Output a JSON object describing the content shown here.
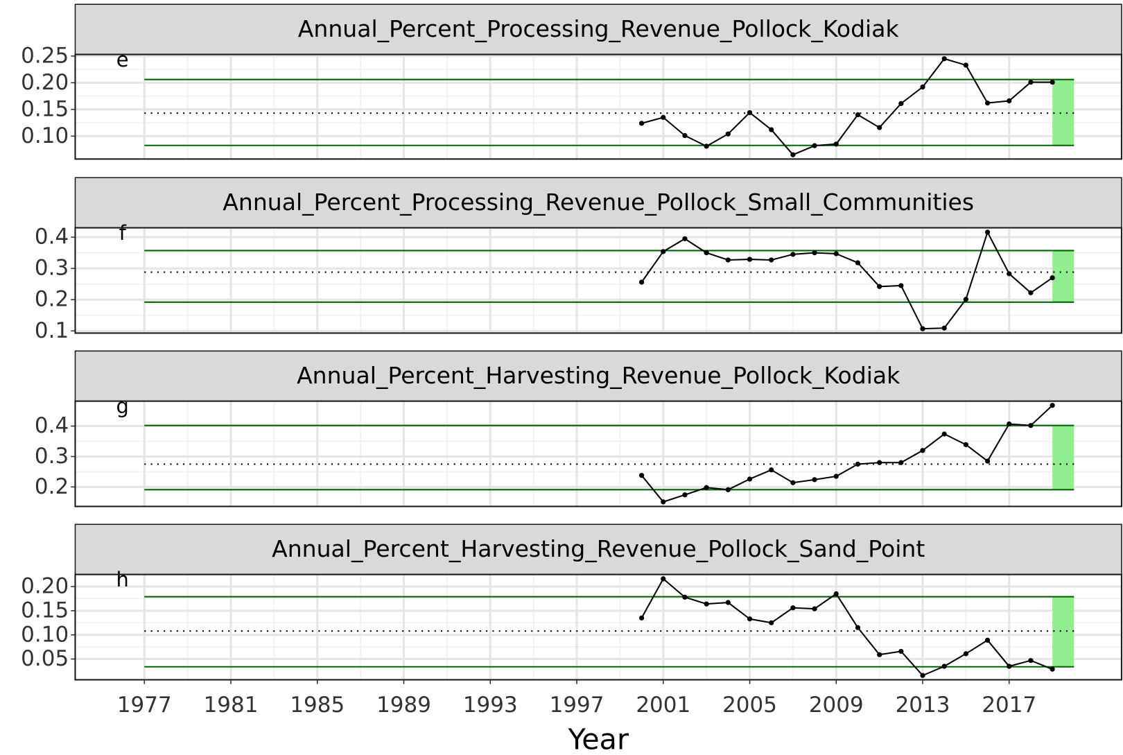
{
  "chart_data": [
    {
      "type": "line",
      "title": "Annual_Percent_Processing_Revenue_Pollock_Kodiak",
      "annotation": "e",
      "x": [
        2000,
        2001,
        2002,
        2003,
        2004,
        2005,
        2006,
        2007,
        2008,
        2009,
        2010,
        2011,
        2012,
        2013,
        2014,
        2015,
        2016,
        2017,
        2018,
        2019
      ],
      "values": [
        0.124,
        0.135,
        0.101,
        0.081,
        0.104,
        0.144,
        0.112,
        0.065,
        0.082,
        0.085,
        0.14,
        0.116,
        0.161,
        0.192,
        0.245,
        0.233,
        0.162,
        0.166,
        0.201,
        0.201
      ],
      "mean": 0.143,
      "upper": 0.206,
      "lower": 0.0825,
      "line_x": [
        1977,
        2020
      ],
      "shade_x": [
        2019,
        2020
      ],
      "ylim": [
        0.057,
        0.253
      ],
      "yticks": [
        {
          "value": 0.1,
          "label": "0.10"
        },
        {
          "value": 0.15,
          "label": "0.15"
        },
        {
          "value": 0.2,
          "label": "0.20"
        },
        {
          "value": 0.25,
          "label": "0.25"
        }
      ]
    },
    {
      "type": "line",
      "title": "Annual_Percent_Processing_Revenue_Pollock_Small_Communities",
      "annotation": "f",
      "x": [
        2000,
        2001,
        2002,
        2003,
        2004,
        2005,
        2006,
        2007,
        2008,
        2009,
        2010,
        2011,
        2012,
        2013,
        2014,
        2015,
        2016,
        2017,
        2018,
        2019
      ],
      "values": [
        0.256,
        0.354,
        0.395,
        0.35,
        0.327,
        0.329,
        0.327,
        0.345,
        0.35,
        0.347,
        0.318,
        0.242,
        0.245,
        0.107,
        0.109,
        0.201,
        0.416,
        0.283,
        0.222,
        0.27
      ],
      "mean": 0.288,
      "upper": 0.357,
      "lower": 0.192,
      "line_x": [
        1977,
        2020
      ],
      "shade_x": [
        2019,
        2020
      ],
      "ylim": [
        0.093,
        0.43
      ],
      "yticks": [
        0.1,
        0.2,
        0.3,
        0.4
      ]
    },
    {
      "type": "line",
      "title": "Annual_Percent_Harvesting_Revenue_Pollock_Kodiak",
      "annotation": "g",
      "x": [
        2000,
        2001,
        2002,
        2003,
        2004,
        2005,
        2006,
        2007,
        2008,
        2009,
        2010,
        2011,
        2012,
        2013,
        2014,
        2015,
        2016,
        2017,
        2018,
        2019
      ],
      "values": [
        0.238,
        0.151,
        0.174,
        0.198,
        0.191,
        0.226,
        0.256,
        0.214,
        0.224,
        0.235,
        0.275,
        0.28,
        0.28,
        0.32,
        0.374,
        0.339,
        0.285,
        0.407,
        0.402,
        0.468
      ],
      "mean": 0.275,
      "upper": 0.402,
      "lower": 0.191,
      "line_x": [
        1977,
        2020
      ],
      "shade_x": [
        2019,
        2020
      ],
      "ylim": [
        0.136,
        0.482
      ],
      "yticks": [
        0.2,
        0.3,
        0.4
      ]
    },
    {
      "type": "line",
      "title": "Annual_Percent_Harvesting_Revenue_Pollock_Sand_Point",
      "annotation": "h",
      "x": [
        2000,
        2001,
        2002,
        2003,
        2004,
        2005,
        2006,
        2007,
        2008,
        2009,
        2010,
        2011,
        2012,
        2013,
        2014,
        2015,
        2016,
        2017,
        2018,
        2019
      ],
      "values": [
        0.135,
        0.216,
        0.178,
        0.164,
        0.167,
        0.133,
        0.125,
        0.156,
        0.154,
        0.185,
        0.115,
        0.059,
        0.066,
        0.016,
        0.035,
        0.061,
        0.089,
        0.035,
        0.047,
        0.029
      ],
      "mean": 0.108,
      "upper": 0.179,
      "lower": 0.034,
      "line_x": [
        1977,
        2020
      ],
      "shade_x": [
        2019,
        2020
      ],
      "ylim": [
        0.0071,
        0.225
      ],
      "yticks": [
        0.05,
        {
          "value": 0.1,
          "label": "0.10"
        },
        0.15,
        {
          "value": 0.2,
          "label": "0.20"
        }
      ],
      "xlabel": "Year",
      "xlim": [
        1973.8,
        2022.2
      ],
      "xticks": [
        1977,
        1981,
        1985,
        1989,
        1993,
        1997,
        2001,
        2005,
        2009,
        2013,
        2017
      ]
    }
  ]
}
